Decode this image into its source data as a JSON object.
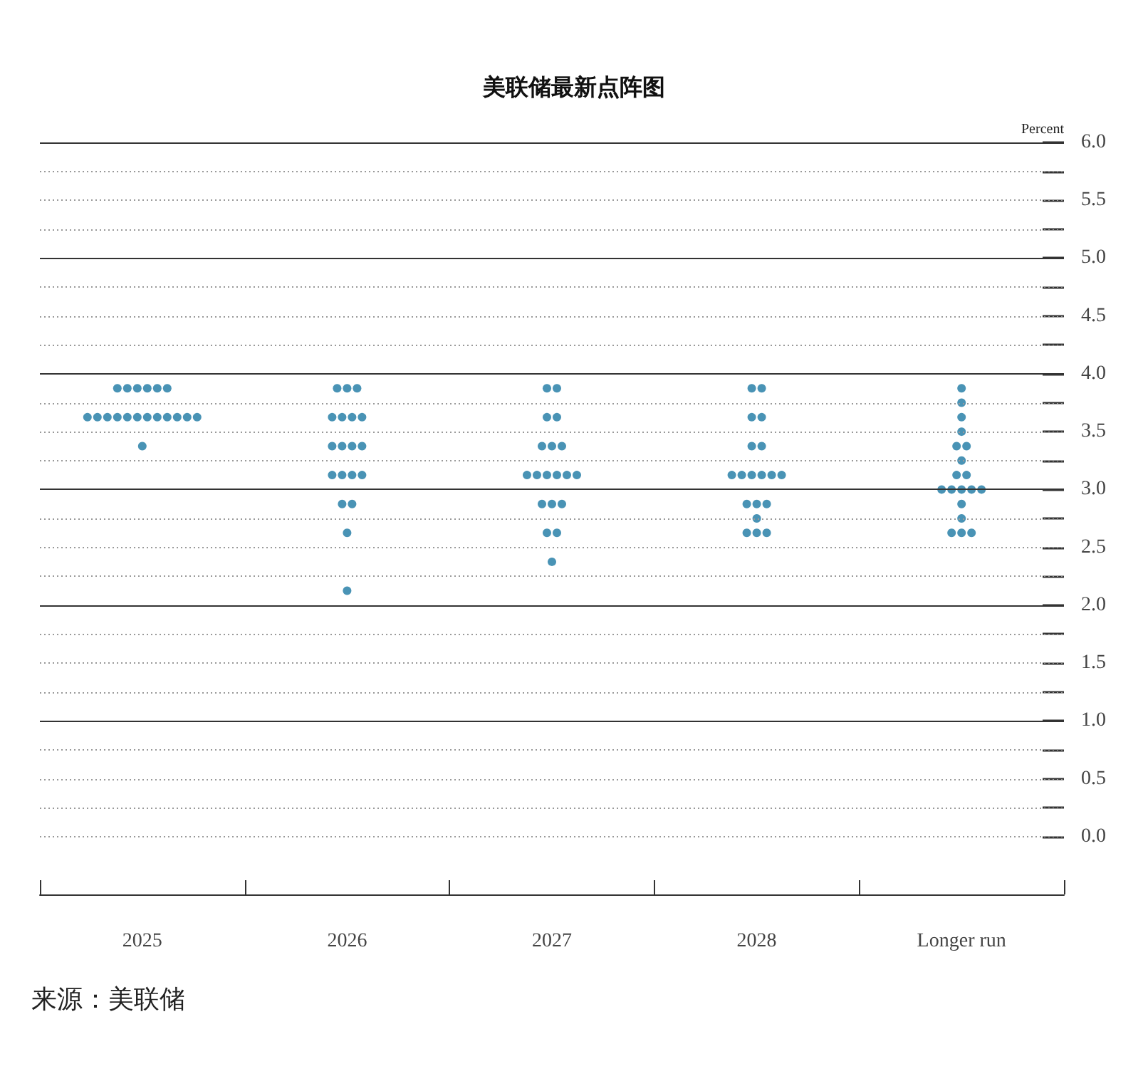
{
  "chart_data": {
    "type": "scatter",
    "title": "美联储最新点阵图",
    "ylabel": "Percent",
    "annotations": [
      "来源：美联储"
    ],
    "categories": [
      "2025",
      "2026",
      "2027",
      "2028",
      "Longer run"
    ],
    "series": [
      {
        "color": "#1b78a3",
        "values": [
          3.875,
          3.875,
          3.875,
          3.875,
          3.875
        ]
      },
      {
        "color": "#1b78a3",
        "values": [
          3.875,
          3.875,
          3.875,
          3.875,
          3.75
        ]
      },
      {
        "color": "#1b78a3",
        "values": [
          3.875,
          3.875,
          3.625,
          3.625,
          3.625
        ]
      },
      {
        "color": "#1b78a3",
        "values": [
          3.875,
          3.625,
          3.625,
          3.625,
          3.5
        ]
      },
      {
        "color": "#1b78a3",
        "values": [
          3.875,
          3.625,
          3.375,
          3.375,
          3.375
        ]
      },
      {
        "color": "#1b78a3",
        "values": [
          3.875,
          3.625,
          3.375,
          3.375,
          3.375
        ]
      },
      {
        "color": "#1b78a3",
        "values": [
          3.625,
          3.625,
          3.375,
          3.125,
          3.25
        ]
      },
      {
        "color": "#1b78a3",
        "values": [
          3.625,
          3.375,
          3.125,
          3.125,
          3.125
        ]
      },
      {
        "color": "#1b78a3",
        "values": [
          3.625,
          3.375,
          3.125,
          3.125,
          3.125
        ]
      },
      {
        "color": "#1b78a3",
        "values": [
          3.625,
          3.375,
          3.125,
          3.125,
          3
        ]
      },
      {
        "color": "#1b78a3",
        "values": [
          3.625,
          3.375,
          3.125,
          3.125,
          3
        ]
      },
      {
        "color": "#1b78a3",
        "values": [
          3.625,
          3.125,
          3.125,
          3.125,
          3
        ]
      },
      {
        "color": "#1b78a3",
        "values": [
          3.625,
          3.125,
          3.125,
          2.875,
          3
        ]
      },
      {
        "color": "#1b78a3",
        "values": [
          3.625,
          3.125,
          2.875,
          2.875,
          3
        ]
      },
      {
        "color": "#1b78a3",
        "values": [
          3.625,
          3.125,
          2.875,
          2.875,
          2.875
        ]
      },
      {
        "color": "#1b78a3",
        "values": [
          3.625,
          2.875,
          2.875,
          2.75,
          2.75
        ]
      },
      {
        "color": "#1b78a3",
        "values": [
          3.625,
          2.875,
          2.625,
          2.625,
          2.625
        ]
      },
      {
        "color": "#1b78a3",
        "values": [
          3.625,
          2.625,
          2.625,
          2.625,
          2.625
        ]
      },
      {
        "color": "#1b78a3",
        "values": [
          3.375,
          2.125,
          2.375,
          2.625,
          2.625
        ]
      }
    ],
    "marker": "circle",
    "grid": "y",
    "ylim": [
      -0.5,
      6
    ],
    "yticks": [
      {
        "value": 0,
        "label": "0.0"
      },
      {
        "value": 0.25,
        "label": null
      },
      {
        "value": 0.5,
        "label": "0.5"
      },
      {
        "value": 0.75,
        "label": null
      },
      {
        "value": 1,
        "label": "1.0"
      },
      {
        "value": 1.25,
        "label": null
      },
      {
        "value": 1.5,
        "label": "1.5"
      },
      {
        "value": 1.75,
        "label": null
      },
      {
        "value": 2,
        "label": "2.0"
      },
      {
        "value": 2.25,
        "label": null
      },
      {
        "value": 2.5,
        "label": "2.5"
      },
      {
        "value": 2.75,
        "label": null
      },
      {
        "value": 3,
        "label": "3.0"
      },
      {
        "value": 3.25,
        "label": null
      },
      {
        "value": 3.5,
        "label": "3.5"
      },
      {
        "value": 3.75,
        "label": null
      },
      {
        "value": 4,
        "label": "4.0"
      },
      {
        "value": 4.25,
        "label": null
      },
      {
        "value": 4.5,
        "label": "4.5"
      },
      {
        "value": 4.75,
        "label": null
      },
      {
        "value": 5,
        "label": "5.0"
      },
      {
        "value": 5.25,
        "label": null
      },
      {
        "value": 5.5,
        "label": "5.5"
      },
      {
        "value": 5.75,
        "label": null
      },
      {
        "value": 6,
        "label": "6.0"
      }
    ]
  }
}
